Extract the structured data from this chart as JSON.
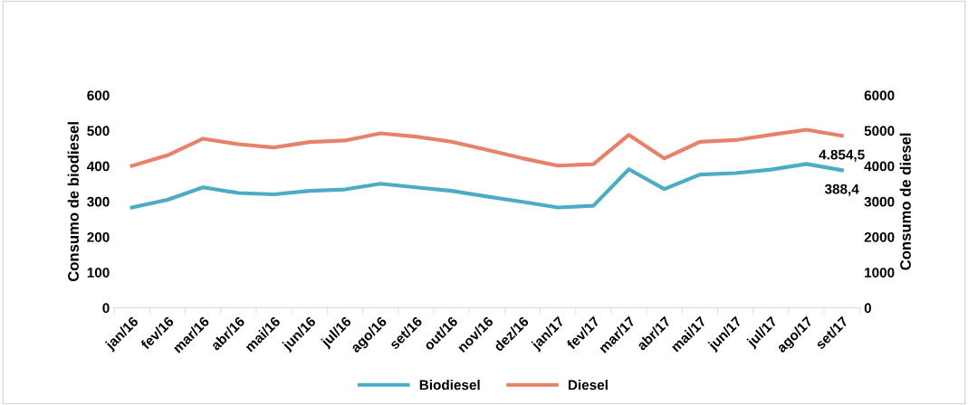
{
  "chart_data": {
    "type": "line",
    "ylabel": "Consumo de biodiesel",
    "y2label": "Consumo de diesel",
    "categories": [
      "jan/16",
      "fev/16",
      "mar/16",
      "abr/16",
      "mai/16",
      "jun/16",
      "jul/16",
      "ago/16",
      "set/16",
      "out/16",
      "nov/16",
      "dez/16",
      "jan/17",
      "fev/17",
      "mar/17",
      "abr/17",
      "mai/17",
      "jun/17",
      "jul/17",
      "ago/17",
      "set/17"
    ],
    "series": [
      {
        "name": "Biodiesel",
        "color": "#4bacc6",
        "values": [
          283,
          305,
          340,
          324,
          320,
          330,
          334,
          350,
          340,
          330,
          314,
          299,
          283,
          288,
          391,
          335,
          376,
          380,
          390,
          406,
          388.4
        ],
        "value_labels": [
          null,
          null,
          null,
          null,
          null,
          null,
          null,
          null,
          null,
          null,
          null,
          null,
          null,
          null,
          null,
          null,
          null,
          null,
          null,
          null,
          "388,4"
        ]
      },
      {
        "name": "Diesel",
        "color": "#e8816a",
        "axis": "y2",
        "values": [
          4007,
          4304,
          4771,
          4618,
          4525,
          4678,
          4720,
          4924,
          4830,
          4686,
          4457,
          4219,
          4010,
          4053,
          4880,
          4217,
          4682,
          4733,
          4880,
          5026,
          4854.5
        ],
        "value_labels": [
          null,
          null,
          null,
          null,
          null,
          null,
          null,
          null,
          null,
          null,
          null,
          null,
          null,
          null,
          null,
          null,
          null,
          null,
          null,
          null,
          "4.854,5"
        ]
      }
    ],
    "ylim": [
      0,
      600
    ],
    "yticks": [
      0,
      100,
      200,
      300,
      400,
      500,
      600
    ],
    "y2lim": [
      0,
      6000
    ],
    "y2ticks": [
      0,
      1000,
      2000,
      3000,
      4000,
      5000,
      6000
    ],
    "grid": false,
    "legend": "bottom"
  }
}
